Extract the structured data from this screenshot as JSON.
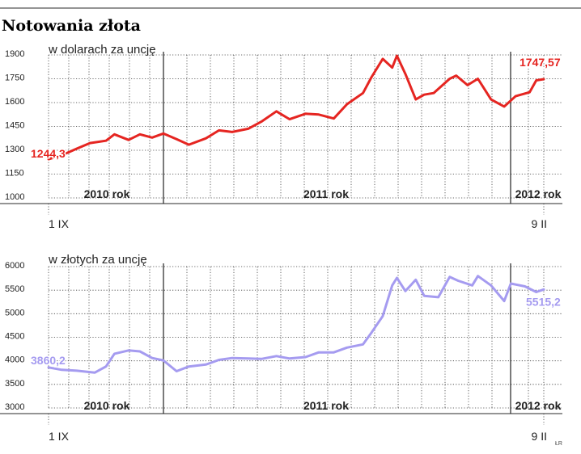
{
  "page": {
    "title": "Notowania złota",
    "credit": "ŁR"
  },
  "colors": {
    "usd_line": "#e52521",
    "pln_line": "#a59bf0",
    "grid": "#3a3a3a",
    "rule": "#555555"
  },
  "chart_data": [
    {
      "type": "line",
      "title": "w dolarach za uncję",
      "xlabel": "",
      "ylabel": "",
      "ylim": [
        1000,
        1900
      ],
      "yticks": [
        1000,
        1150,
        1300,
        1450,
        1600,
        1750,
        1900
      ],
      "grid": true,
      "x_start_label": "1 IX",
      "x_end_label": "9 II",
      "year_labels": [
        "2010 rok",
        "2011 rok",
        "2012 rok"
      ],
      "x_period": [
        "2010-09-01",
        "2012-02-09"
      ],
      "series": [
        {
          "color": "#e52521",
          "x": [
            "2010-09-01",
            "2010-09-15",
            "2010-10-01",
            "2010-10-15",
            "2010-11-01",
            "2010-11-10",
            "2010-11-25",
            "2010-12-07",
            "2010-12-20",
            "2011-01-01",
            "2011-01-15",
            "2011-01-28",
            "2011-02-15",
            "2011-03-01",
            "2011-03-15",
            "2011-04-01",
            "2011-04-15",
            "2011-05-01",
            "2011-05-15",
            "2011-06-01",
            "2011-06-15",
            "2011-07-01",
            "2011-07-15",
            "2011-08-01",
            "2011-08-10",
            "2011-08-22",
            "2011-09-01",
            "2011-09-06",
            "2011-09-15",
            "2011-09-26",
            "2011-10-05",
            "2011-10-15",
            "2011-11-01",
            "2011-11-08",
            "2011-11-20",
            "2011-12-01",
            "2011-12-15",
            "2011-12-29",
            "2012-01-10",
            "2012-01-25",
            "2012-02-01",
            "2012-02-09"
          ],
          "values": [
            1244.3,
            1268,
            1310,
            1345,
            1360,
            1400,
            1365,
            1400,
            1380,
            1405,
            1370,
            1335,
            1375,
            1425,
            1415,
            1435,
            1480,
            1545,
            1495,
            1530,
            1525,
            1500,
            1590,
            1660,
            1760,
            1875,
            1820,
            1895,
            1780,
            1620,
            1650,
            1660,
            1750,
            1770,
            1710,
            1750,
            1620,
            1575,
            1640,
            1665,
            1740,
            1747.57
          ]
        }
      ],
      "first_value_label": "1244,3",
      "last_value_label": "1747,57"
    },
    {
      "type": "line",
      "title": "w złotych za uncję",
      "xlabel": "",
      "ylabel": "",
      "ylim": [
        3000,
        6000
      ],
      "yticks": [
        3000,
        3500,
        4000,
        4500,
        5000,
        5500,
        6000
      ],
      "grid": true,
      "x_start_label": "1 IX",
      "x_end_label": "9 II",
      "year_labels": [
        "2010 rok",
        "2011 rok",
        "2012 rok"
      ],
      "x_period": [
        "2010-09-01",
        "2012-02-09"
      ],
      "series": [
        {
          "color": "#a59bf0",
          "x": [
            "2010-09-01",
            "2010-09-15",
            "2010-10-01",
            "2010-10-20",
            "2010-11-01",
            "2010-11-10",
            "2010-11-25",
            "2010-12-07",
            "2010-12-20",
            "2011-01-01",
            "2011-01-15",
            "2011-01-28",
            "2011-02-15",
            "2011-03-01",
            "2011-03-15",
            "2011-04-01",
            "2011-04-15",
            "2011-05-01",
            "2011-05-15",
            "2011-06-01",
            "2011-06-15",
            "2011-07-01",
            "2011-07-15",
            "2011-08-01",
            "2011-08-10",
            "2011-08-22",
            "2011-09-01",
            "2011-09-06",
            "2011-09-15",
            "2011-09-26",
            "2011-10-05",
            "2011-10-20",
            "2011-11-01",
            "2011-11-10",
            "2011-11-25",
            "2011-12-01",
            "2011-12-15",
            "2011-12-29",
            "2012-01-05",
            "2012-01-20",
            "2012-02-01",
            "2012-02-09"
          ],
          "values": [
            3860.2,
            3810,
            3790,
            3750,
            3880,
            4150,
            4220,
            4200,
            4060,
            4010,
            3780,
            3880,
            3920,
            4020,
            4060,
            4050,
            4040,
            4100,
            4050,
            4080,
            4180,
            4180,
            4280,
            4350,
            4600,
            4950,
            5600,
            5760,
            5480,
            5720,
            5380,
            5350,
            5780,
            5700,
            5600,
            5800,
            5600,
            5270,
            5640,
            5580,
            5460,
            5515.2
          ]
        }
      ],
      "first_value_label": "3860,2",
      "last_value_label": "5515,2"
    }
  ]
}
